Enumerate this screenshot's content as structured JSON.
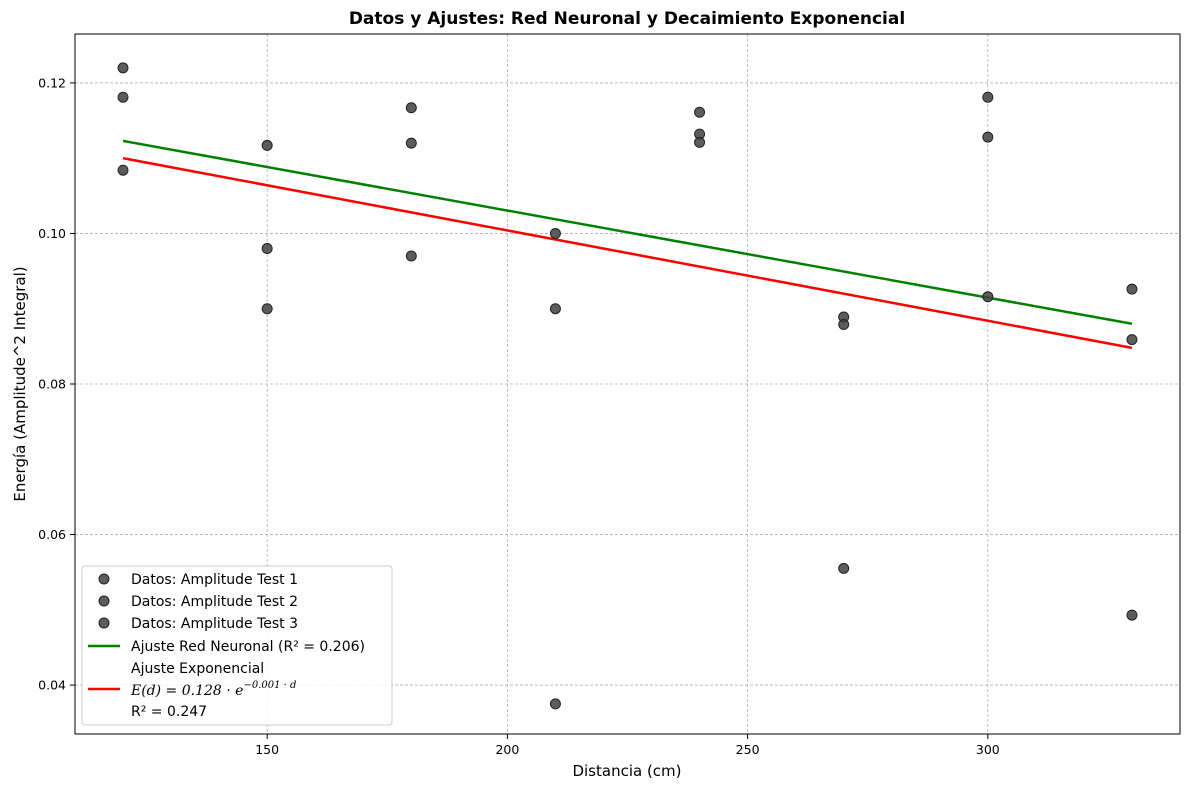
{
  "chart_data": {
    "type": "scatter",
    "title": "Datos y Ajustes: Red Neuronal y Decaimiento Exponencial",
    "xlabel": "Distancia (cm)",
    "ylabel": "Energía (Amplitude^2 Integral)",
    "xlim": [
      110,
      340
    ],
    "ylim": [
      0.0335,
      0.1265
    ],
    "xticks": [
      150,
      200,
      250,
      300
    ],
    "xtick_labels": [
      "150",
      "200",
      "250",
      "300"
    ],
    "yticks": [
      0.04,
      0.06,
      0.08,
      0.1,
      0.12
    ],
    "ytick_labels": [
      "0.04",
      "0.06",
      "0.08",
      "0.10",
      "0.12"
    ],
    "grid": true,
    "legend_position": "bottom-left",
    "scatter_series": [
      {
        "name": "Datos: Amplitude Test 1",
        "color": "#3f3f3f",
        "points": [
          [
            120,
            0.122
          ],
          [
            150,
            0.1117
          ],
          [
            180,
            0.1167
          ],
          [
            210,
            0.1
          ],
          [
            240,
            0.1161
          ],
          [
            270,
            0.0889
          ],
          [
            300,
            0.1181
          ],
          [
            330,
            0.0926
          ]
        ]
      },
      {
        "name": "Datos: Amplitude Test 2",
        "color": "#3f3f3f",
        "points": [
          [
            120,
            0.1181
          ],
          [
            150,
            0.098
          ],
          [
            180,
            0.112
          ],
          [
            210,
            0.09
          ],
          [
            240,
            0.1132
          ],
          [
            270,
            0.0879
          ],
          [
            300,
            0.1128
          ],
          [
            330,
            0.0859
          ]
        ]
      },
      {
        "name": "Datos: Amplitude Test 3",
        "color": "#3f3f3f",
        "points": [
          [
            120,
            0.1084
          ],
          [
            150,
            0.09
          ],
          [
            180,
            0.097
          ],
          [
            210,
            0.0375
          ],
          [
            240,
            0.1121
          ],
          [
            270,
            0.0555
          ],
          [
            300,
            0.0916
          ],
          [
            330,
            0.0493
          ]
        ]
      }
    ],
    "line_series": [
      {
        "name": "Ajuste Red Neuronal (R² = 0.206)",
        "color": "#008000",
        "x": [
          120,
          330
        ],
        "y": [
          0.1123,
          0.088
        ]
      },
      {
        "name": "Ajuste Exponencial",
        "name_line2_prefix": "E(d) = 0.128 · e",
        "name_line2_exponent": "−0.001 · d",
        "name_line3": "R² = 0.247",
        "color": "#ff0000",
        "x": [
          120,
          330
        ],
        "y": [
          0.11,
          0.0848
        ]
      }
    ]
  }
}
